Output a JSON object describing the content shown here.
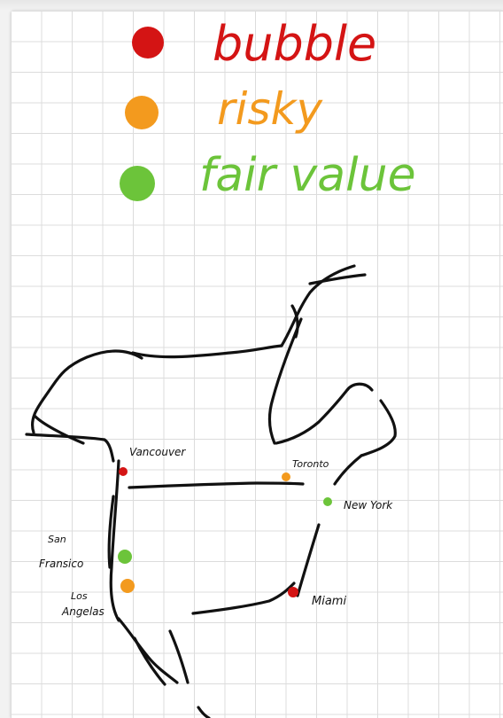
{
  "legend": {
    "items": [
      {
        "label": "bubble",
        "color": "#d41414"
      },
      {
        "label": "risky",
        "color": "#f39a1e"
      },
      {
        "label": "fair value",
        "color": "#6cc43a"
      }
    ]
  },
  "map": {
    "outline_color": "#111111",
    "cities": [
      {
        "name": "Vancouver",
        "status": "bubble",
        "color": "#d41414"
      },
      {
        "name": "Toronto",
        "status": "risky",
        "color": "#f39a1e"
      },
      {
        "name": "New York",
        "status": "fair value",
        "color": "#6cc43a"
      },
      {
        "name": "San Fransico",
        "status": "fair value",
        "color": "#6cc43a"
      },
      {
        "name": "Los Angelas",
        "status": "risky",
        "color": "#f39a1e"
      },
      {
        "name": "Miami",
        "status": "bubble",
        "color": "#d41414"
      }
    ]
  }
}
